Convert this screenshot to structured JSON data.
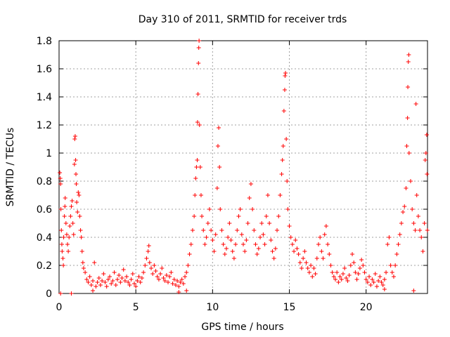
{
  "chart_data": {
    "type": "scatter",
    "title": "Day 310 of 2011, SRMTID for receiver trds",
    "xlabel": "GPS time / hours",
    "ylabel": "SRMTID / TECUs",
    "xlim": [
      0,
      24
    ],
    "ylim": [
      0,
      1.8
    ],
    "xticks": [
      0,
      5,
      10,
      15,
      20
    ],
    "xtick_labels": [
      "0",
      "5",
      "10",
      "15",
      "20"
    ],
    "yticks": [
      0,
      0.2,
      0.4,
      0.6,
      0.8,
      1.0,
      1.2,
      1.4,
      1.6,
      1.8
    ],
    "ytick_labels": [
      "0",
      "0.2",
      "0.4",
      "0.6",
      "0.8",
      "1",
      "1.2",
      "1.4",
      "1.6",
      "1.8"
    ],
    "grid": true,
    "marker": "+",
    "series": [
      {
        "name": "SRMTID",
        "color": "#ff0000",
        "points": [
          [
            0.05,
            0.86
          ],
          [
            0.08,
            0.82
          ],
          [
            0.1,
            0.78
          ],
          [
            0.12,
            0.6
          ],
          [
            0.15,
            0.45
          ],
          [
            0.18,
            0.35
          ],
          [
            0.2,
            0.3
          ],
          [
            0.25,
            0.25
          ],
          [
            0.28,
            0.2
          ],
          [
            0.3,
            0.4
          ],
          [
            0.35,
            0.55
          ],
          [
            0.38,
            0.62
          ],
          [
            0.4,
            0.68
          ],
          [
            0.45,
            0.5
          ],
          [
            0.5,
            0.42
          ],
          [
            0.55,
            0.35
          ],
          [
            0.6,
            0.3
          ],
          [
            0.65,
            0.4
          ],
          [
            0.7,
            0.48
          ],
          [
            0.75,
            0.55
          ],
          [
            0.8,
            0.62
          ],
          [
            0.85,
            0.66
          ],
          [
            0.9,
            0.5
          ],
          [
            0.95,
            0.42
          ],
          [
            1.0,
            0.92
          ],
          [
            1.02,
            1.1
          ],
          [
            1.05,
            1.12
          ],
          [
            1.08,
            0.95
          ],
          [
            1.1,
            0.85
          ],
          [
            1.12,
            0.78
          ],
          [
            1.15,
            0.65
          ],
          [
            1.2,
            0.58
          ],
          [
            1.25,
            0.72
          ],
          [
            1.3,
            0.7
          ],
          [
            1.35,
            0.55
          ],
          [
            1.4,
            0.45
          ],
          [
            1.45,
            0.4
          ],
          [
            1.5,
            0.3
          ],
          [
            1.55,
            0.22
          ],
          [
            1.6,
            0.18
          ],
          [
            1.7,
            0.15
          ],
          [
            1.8,
            0.1
          ],
          [
            1.9,
            0.08
          ],
          [
            2.0,
            0.12
          ],
          [
            2.1,
            0.06
          ],
          [
            2.2,
            0.09
          ],
          [
            2.3,
            0.22
          ],
          [
            2.4,
            0.05
          ],
          [
            2.5,
            0.08
          ],
          [
            2.6,
            0.11
          ],
          [
            2.7,
            0.06
          ],
          [
            2.8,
            0.09
          ],
          [
            2.9,
            0.14
          ],
          [
            3.0,
            0.08
          ],
          [
            3.1,
            0.05
          ],
          [
            3.2,
            0.1
          ],
          [
            3.3,
            0.12
          ],
          [
            3.4,
            0.07
          ],
          [
            3.5,
            0.09
          ],
          [
            3.6,
            0.15
          ],
          [
            3.7,
            0.06
          ],
          [
            3.8,
            0.1
          ],
          [
            3.9,
            0.13
          ],
          [
            4.0,
            0.08
          ],
          [
            4.1,
            0.11
          ],
          [
            4.2,
            0.17
          ],
          [
            4.3,
            0.09
          ],
          [
            4.4,
            0.12
          ],
          [
            4.5,
            0.08
          ],
          [
            4.6,
            0.06
          ],
          [
            4.7,
            0.1
          ],
          [
            4.8,
            0.14
          ],
          [
            4.9,
            0.07
          ],
          [
            5.0,
            0.05
          ],
          [
            5.1,
            0.09
          ],
          [
            5.2,
            0.12
          ],
          [
            5.3,
            0.08
          ],
          [
            5.4,
            0.11
          ],
          [
            5.5,
            0.15
          ],
          [
            5.6,
            0.2
          ],
          [
            5.7,
            0.25
          ],
          [
            5.8,
            0.3
          ],
          [
            5.85,
            0.34
          ],
          [
            5.9,
            0.22
          ],
          [
            6.0,
            0.18
          ],
          [
            6.1,
            0.14
          ],
          [
            6.2,
            0.2
          ],
          [
            6.3,
            0.16
          ],
          [
            6.4,
            0.12
          ],
          [
            6.5,
            0.1
          ],
          [
            6.6,
            0.14
          ],
          [
            6.7,
            0.18
          ],
          [
            6.8,
            0.11
          ],
          [
            6.9,
            0.09
          ],
          [
            7.0,
            0.13
          ],
          [
            7.1,
            0.08
          ],
          [
            7.2,
            0.12
          ],
          [
            7.3,
            0.15
          ],
          [
            7.4,
            0.07
          ],
          [
            7.5,
            0.1
          ],
          [
            7.6,
            0.06
          ],
          [
            7.7,
            0.09
          ],
          [
            7.8,
            0.05
          ],
          [
            7.9,
            0.08
          ],
          [
            8.0,
            0.1
          ],
          [
            8.1,
            0.07
          ],
          [
            8.2,
            0.12
          ],
          [
            8.3,
            0.15
          ],
          [
            8.4,
            0.2
          ],
          [
            8.5,
            0.28
          ],
          [
            8.6,
            0.35
          ],
          [
            8.7,
            0.45
          ],
          [
            8.8,
            0.55
          ],
          [
            8.85,
            0.7
          ],
          [
            8.9,
            0.82
          ],
          [
            8.95,
            0.9
          ],
          [
            9.0,
            0.95
          ],
          [
            9.02,
            1.22
          ],
          [
            9.05,
            1.42
          ],
          [
            9.08,
            1.64
          ],
          [
            9.1,
            1.75
          ],
          [
            9.12,
            1.8
          ],
          [
            9.15,
            1.2
          ],
          [
            9.2,
            0.9
          ],
          [
            9.25,
            0.7
          ],
          [
            9.3,
            0.55
          ],
          [
            9.4,
            0.45
          ],
          [
            9.5,
            0.35
          ],
          [
            9.6,
            0.4
          ],
          [
            9.7,
            0.5
          ],
          [
            9.8,
            0.6
          ],
          [
            9.9,
            0.45
          ],
          [
            10.0,
            0.38
          ],
          [
            10.1,
            0.3
          ],
          [
            10.2,
            0.42
          ],
          [
            10.3,
            0.75
          ],
          [
            10.35,
            1.05
          ],
          [
            10.4,
            1.18
          ],
          [
            10.45,
            0.9
          ],
          [
            10.5,
            0.6
          ],
          [
            10.6,
            0.45
          ],
          [
            10.7,
            0.35
          ],
          [
            10.8,
            0.28
          ],
          [
            10.9,
            0.32
          ],
          [
            11.0,
            0.4
          ],
          [
            11.1,
            0.5
          ],
          [
            11.2,
            0.38
          ],
          [
            11.3,
            0.3
          ],
          [
            11.4,
            0.25
          ],
          [
            11.5,
            0.35
          ],
          [
            11.6,
            0.45
          ],
          [
            11.7,
            0.55
          ],
          [
            11.8,
            0.6
          ],
          [
            11.9,
            0.42
          ],
          [
            12.0,
            0.35
          ],
          [
            12.1,
            0.3
          ],
          [
            12.2,
            0.38
          ],
          [
            12.3,
            0.5
          ],
          [
            12.4,
            0.68
          ],
          [
            12.5,
            0.78
          ],
          [
            12.6,
            0.6
          ],
          [
            12.7,
            0.45
          ],
          [
            12.8,
            0.35
          ],
          [
            12.9,
            0.28
          ],
          [
            13.0,
            0.32
          ],
          [
            13.1,
            0.4
          ],
          [
            13.2,
            0.5
          ],
          [
            13.3,
            0.42
          ],
          [
            13.4,
            0.35
          ],
          [
            13.5,
            0.55
          ],
          [
            13.6,
            0.7
          ],
          [
            13.7,
            0.5
          ],
          [
            13.8,
            0.38
          ],
          [
            13.9,
            0.3
          ],
          [
            14.0,
            0.25
          ],
          [
            14.1,
            0.32
          ],
          [
            14.2,
            0.45
          ],
          [
            14.3,
            0.55
          ],
          [
            14.4,
            0.7
          ],
          [
            14.5,
            0.85
          ],
          [
            14.55,
            0.95
          ],
          [
            14.6,
            1.05
          ],
          [
            14.65,
            1.3
          ],
          [
            14.7,
            1.45
          ],
          [
            14.72,
            1.55
          ],
          [
            14.75,
            1.57
          ],
          [
            14.8,
            1.1
          ],
          [
            14.85,
            0.8
          ],
          [
            14.9,
            0.6
          ],
          [
            15.0,
            0.48
          ],
          [
            15.1,
            0.4
          ],
          [
            15.2,
            0.35
          ],
          [
            15.3,
            0.3
          ],
          [
            15.4,
            0.38
          ],
          [
            15.5,
            0.32
          ],
          [
            15.6,
            0.28
          ],
          [
            15.7,
            0.22
          ],
          [
            15.8,
            0.18
          ],
          [
            15.9,
            0.25
          ],
          [
            16.0,
            0.3
          ],
          [
            16.1,
            0.22
          ],
          [
            16.2,
            0.18
          ],
          [
            16.3,
            0.15
          ],
          [
            16.4,
            0.2
          ],
          [
            16.5,
            0.12
          ],
          [
            16.6,
            0.18
          ],
          [
            16.7,
            0.14
          ],
          [
            16.8,
            0.25
          ],
          [
            16.9,
            0.35
          ],
          [
            17.0,
            0.4
          ],
          [
            17.1,
            0.3
          ],
          [
            17.2,
            0.25
          ],
          [
            17.3,
            0.42
          ],
          [
            17.4,
            0.48
          ],
          [
            17.5,
            0.35
          ],
          [
            17.6,
            0.28
          ],
          [
            17.7,
            0.2
          ],
          [
            17.8,
            0.15
          ],
          [
            17.9,
            0.12
          ],
          [
            18.0,
            0.1
          ],
          [
            18.1,
            0.15
          ],
          [
            18.2,
            0.08
          ],
          [
            18.3,
            0.12
          ],
          [
            18.4,
            0.1
          ],
          [
            18.5,
            0.14
          ],
          [
            18.6,
            0.18
          ],
          [
            18.7,
            0.11
          ],
          [
            18.8,
            0.09
          ],
          [
            18.9,
            0.13
          ],
          [
            19.0,
            0.2
          ],
          [
            19.1,
            0.28
          ],
          [
            19.2,
            0.22
          ],
          [
            19.3,
            0.15
          ],
          [
            19.4,
            0.1
          ],
          [
            19.5,
            0.14
          ],
          [
            19.6,
            0.18
          ],
          [
            19.7,
            0.24
          ],
          [
            19.8,
            0.2
          ],
          [
            19.9,
            0.15
          ],
          [
            20.0,
            0.1
          ],
          [
            20.1,
            0.08
          ],
          [
            20.2,
            0.12
          ],
          [
            20.3,
            0.06
          ],
          [
            20.4,
            0.1
          ],
          [
            20.5,
            0.08
          ],
          [
            20.6,
            0.14
          ],
          [
            20.7,
            0.05
          ],
          [
            20.8,
            0.09
          ],
          [
            20.9,
            0.12
          ],
          [
            21.0,
            0.08
          ],
          [
            21.1,
            0.06
          ],
          [
            21.2,
            0.1
          ],
          [
            21.3,
            0.15
          ],
          [
            21.4,
            0.35
          ],
          [
            21.5,
            0.4
          ],
          [
            21.6,
            0.2
          ],
          [
            21.7,
            0.15
          ],
          [
            21.8,
            0.12
          ],
          [
            21.9,
            0.2
          ],
          [
            22.0,
            0.28
          ],
          [
            22.1,
            0.35
          ],
          [
            22.2,
            0.42
          ],
          [
            22.3,
            0.5
          ],
          [
            22.4,
            0.58
          ],
          [
            22.5,
            0.62
          ],
          [
            22.6,
            0.75
          ],
          [
            22.65,
            1.05
          ],
          [
            22.7,
            1.25
          ],
          [
            22.72,
            1.47
          ],
          [
            22.75,
            1.65
          ],
          [
            22.78,
            1.7
          ],
          [
            22.8,
            1.0
          ],
          [
            22.9,
            0.8
          ],
          [
            23.0,
            0.6
          ],
          [
            23.1,
            0.5
          ],
          [
            23.2,
            0.45
          ],
          [
            23.25,
            1.35
          ],
          [
            23.3,
            0.7
          ],
          [
            23.4,
            0.55
          ],
          [
            23.5,
            0.45
          ],
          [
            23.6,
            0.4
          ],
          [
            23.7,
            0.3
          ],
          [
            23.8,
            0.5
          ],
          [
            23.85,
            0.95
          ],
          [
            23.9,
            1.0
          ],
          [
            23.95,
            1.13
          ],
          [
            23.97,
            0.85
          ],
          [
            23.99,
            0.45
          ],
          [
            0.1,
            0.0
          ],
          [
            0.8,
            0.0
          ],
          [
            21.2,
            0.03
          ],
          [
            23.1,
            0.02
          ],
          [
            8.3,
            0.02
          ],
          [
            7.8,
            0.01
          ],
          [
            2.2,
            0.02
          ]
        ]
      }
    ]
  }
}
